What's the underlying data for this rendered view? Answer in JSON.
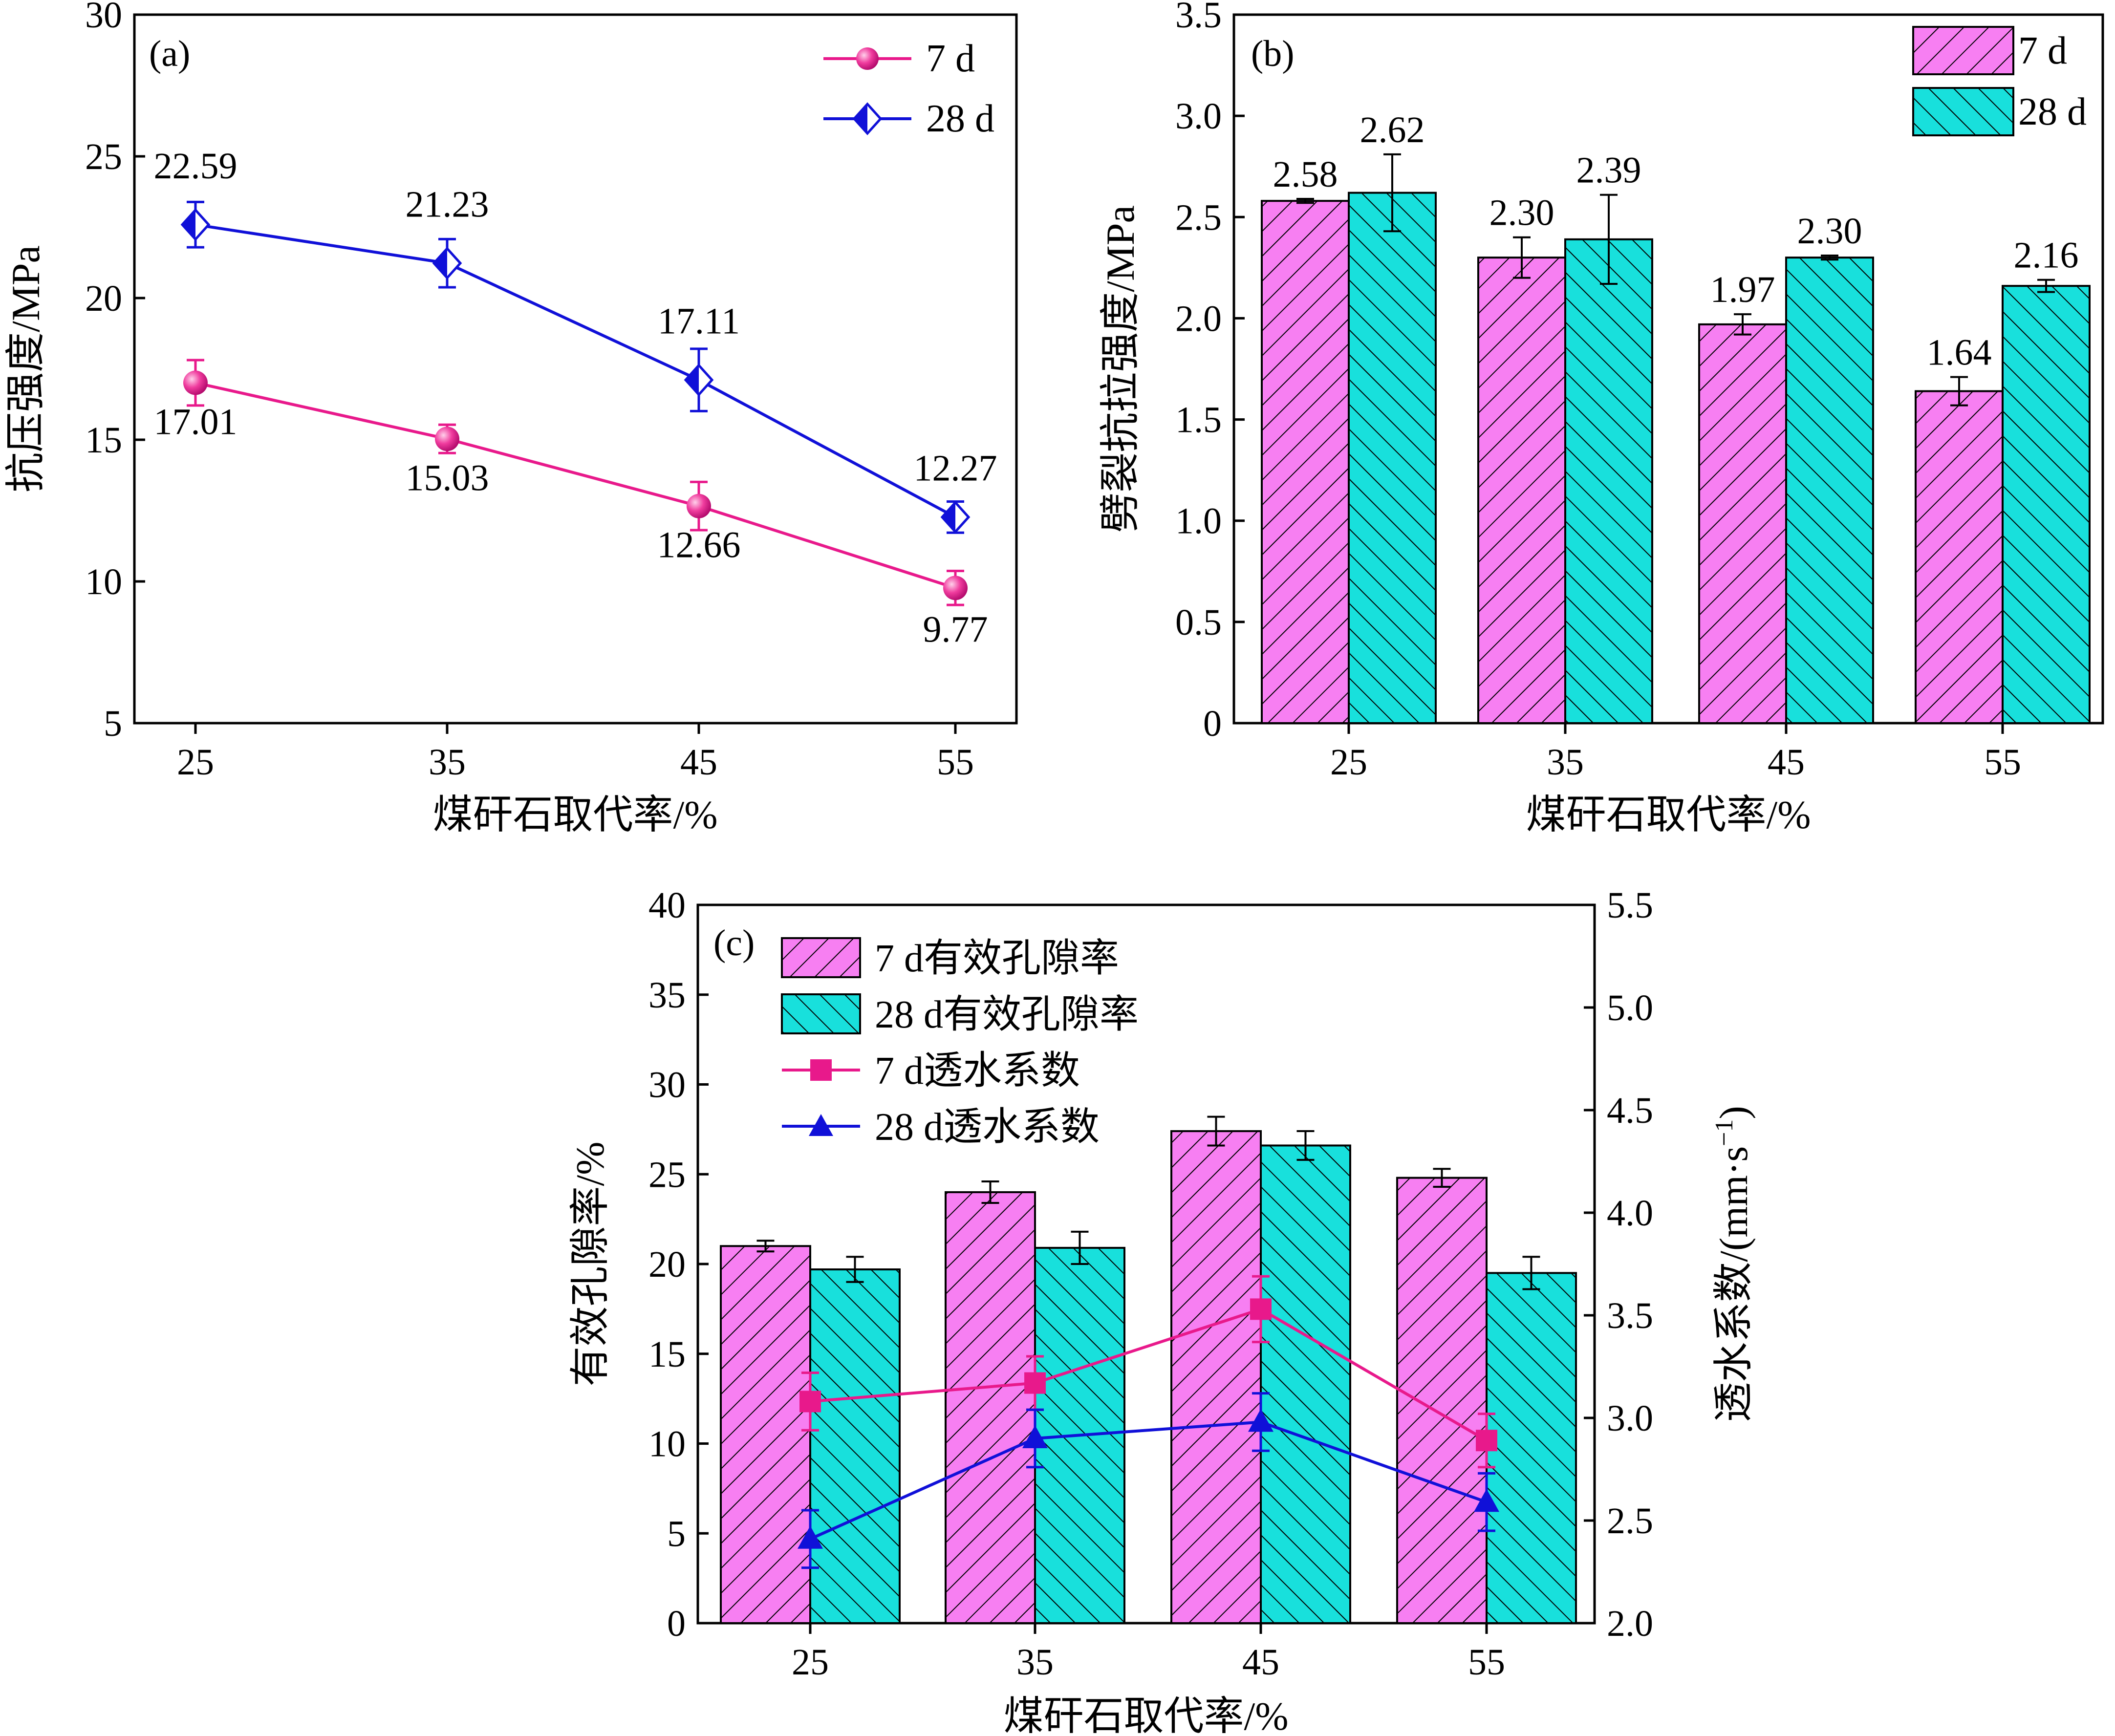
{
  "colors": {
    "pink": "#e8198b",
    "blue": "#1010d8",
    "bar7": "#f77ff2",
    "bar28": "#18e0dc"
  },
  "chart_data": [
    {
      "panel": "(a)",
      "type": "line",
      "xlabel": "煤矸石取代率/%",
      "ylabel": "抗压强度/MPa",
      "categories": [
        "25",
        "35",
        "45",
        "55"
      ],
      "ylim": [
        5,
        30
      ],
      "yticks": [
        "5",
        "10",
        "15",
        "20",
        "25",
        "30"
      ],
      "series": [
        {
          "name": "7 d",
          "marker": "sphere",
          "values": [
            17.01,
            15.03,
            12.66,
            9.77
          ],
          "errors": [
            0.8,
            0.5,
            0.85,
            0.6
          ],
          "labels": [
            "17.01",
            "15.03",
            "12.66",
            "9.77"
          ]
        },
        {
          "name": "28 d",
          "marker": "half-diamond",
          "values": [
            22.59,
            21.23,
            17.11,
            12.27
          ],
          "errors": [
            0.8,
            0.85,
            1.1,
            0.55
          ],
          "labels": [
            "22.59",
            "21.23",
            "17.11",
            "12.27"
          ]
        }
      ],
      "legend": "top-right"
    },
    {
      "panel": "(b)",
      "type": "bar",
      "xlabel": "煤矸石取代率/%",
      "ylabel": "劈裂抗拉强度/MPa",
      "categories": [
        "25",
        "35",
        "45",
        "55"
      ],
      "ylim": [
        0,
        3.5
      ],
      "yticks": [
        "0",
        "0.5",
        "1.0",
        "1.5",
        "2.0",
        "2.5",
        "3.0",
        "3.5"
      ],
      "series": [
        {
          "name": "7 d",
          "values": [
            2.58,
            2.3,
            1.97,
            1.64
          ],
          "errors": [
            0.01,
            0.1,
            0.05,
            0.07
          ],
          "labels": [
            "2.58",
            "2.30",
            "1.97",
            "1.64"
          ]
        },
        {
          "name": "28 d",
          "values": [
            2.62,
            2.39,
            2.3,
            2.16
          ],
          "errors": [
            0.19,
            0.22,
            0.01,
            0.03
          ],
          "labels": [
            "2.62",
            "2.39",
            "2.30",
            "2.16"
          ]
        }
      ],
      "legend": "top-right"
    },
    {
      "panel": "(c)",
      "type": "bar",
      "xlabel": "煤矸石取代率/%",
      "ylabel": "有效孔隙率/%",
      "y2label_main": "透水系数/(mm·s",
      "y2label_sup": "−1",
      "y2label_end": ")",
      "categories": [
        "25",
        "35",
        "45",
        "55"
      ],
      "ylim": [
        0,
        40
      ],
      "yticks": [
        "0",
        "5",
        "10",
        "15",
        "20",
        "25",
        "30",
        "35",
        "40"
      ],
      "y2lim": [
        2.0,
        5.5
      ],
      "y2ticks": [
        "2.0",
        "2.5",
        "3.0",
        "3.5",
        "4.0",
        "4.5",
        "5.0",
        "5.5"
      ],
      "bar_series": [
        {
          "name": "7 d有效孔隙率",
          "values": [
            21.0,
            24.0,
            27.4,
            24.8
          ],
          "errors": [
            0.3,
            0.6,
            0.8,
            0.5
          ]
        },
        {
          "name": "28 d有效孔隙率",
          "values": [
            19.7,
            20.9,
            26.6,
            19.5
          ],
          "errors": [
            0.7,
            0.9,
            0.8,
            0.9
          ]
        }
      ],
      "line_series": [
        {
          "name": "7 d透水系数",
          "marker": "square",
          "axis": "right",
          "values": [
            3.08,
            3.17,
            3.53,
            2.89
          ],
          "errors": [
            0.14,
            0.13,
            0.16,
            0.13
          ]
        },
        {
          "name": "28 d透水系数",
          "marker": "triangle",
          "axis": "right",
          "values": [
            2.41,
            2.9,
            2.98,
            2.59
          ],
          "errors": [
            0.14,
            0.14,
            0.14,
            0.14
          ]
        }
      ],
      "legend": "top-left"
    }
  ]
}
